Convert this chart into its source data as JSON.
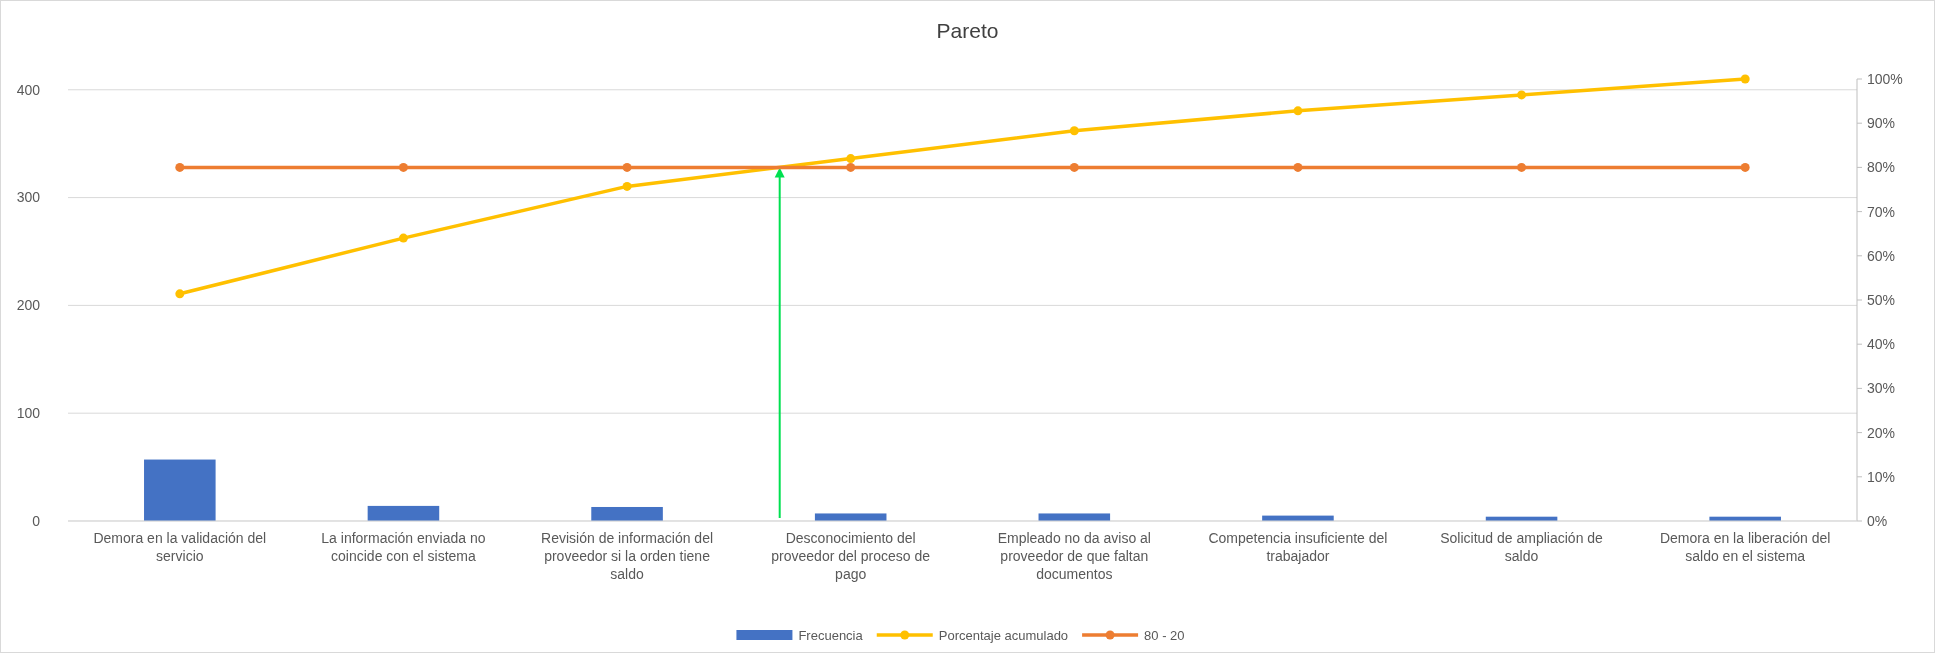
{
  "chart_data": {
    "type": "bar",
    "title": "Pareto",
    "categories": [
      "Demora en la validación del servicio",
      "La información enviada no coincide con el sistema",
      "Revisión de información del proveedor si la orden tiene saldo",
      "Desconocimiento del proveedor del proceso de pago",
      "Empleado no da aviso al proveedor de que faltan documentos",
      "Competencia insuficiente del trabajador",
      "Solicitud de ampliación de saldo",
      "Demora en la liberación del saldo en el sistema"
    ],
    "series": [
      {
        "name": "Frecuencia",
        "color": "#4472c4",
        "values": [
          57,
          14,
          13,
          7,
          7,
          5,
          4,
          4
        ]
      },
      {
        "name": "Porcentaje acumulado",
        "type": "line",
        "axis": "y2",
        "color": "#ffc000",
        "values": [
          51.4,
          64,
          75.7,
          82,
          88.3,
          92.8,
          96.4,
          100
        ]
      },
      {
        "name": "80 - 20",
        "type": "line",
        "axis": "y2",
        "color": "#ed7d31",
        "values": [
          80,
          80,
          80,
          80,
          80,
          80,
          80,
          80
        ]
      }
    ],
    "ylim": [
      0,
      410
    ],
    "yticks": [
      0,
      100,
      200,
      300,
      400
    ],
    "y2lim": [
      0,
      100
    ],
    "y2ticks": [
      {
        "value": 0,
        "label": "0%"
      },
      {
        "value": 10,
        "label": "10%"
      },
      {
        "value": 20,
        "label": "20%"
      },
      {
        "value": 30,
        "label": "30%"
      },
      {
        "value": 40,
        "label": "40%"
      },
      {
        "value": 50,
        "label": "50%"
      },
      {
        "value": 60,
        "label": "60%"
      },
      {
        "value": 70,
        "label": "70%"
      },
      {
        "value": 80,
        "label": "80%"
      },
      {
        "value": 90,
        "label": "90%"
      },
      {
        "value": 100,
        "label": "100%"
      }
    ],
    "grid": "y",
    "legend": "bottom",
    "marker": "circle",
    "line_style": "solid"
  }
}
